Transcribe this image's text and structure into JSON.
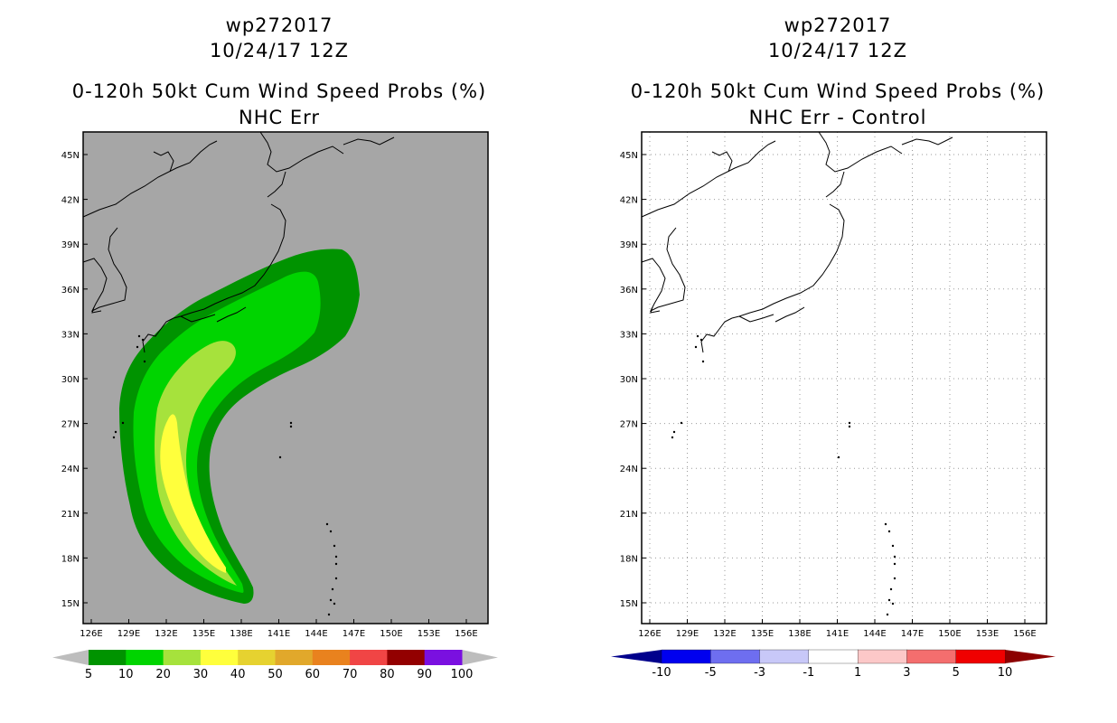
{
  "panels": [
    {
      "title": {
        "storm": "wp272017",
        "date": "10/24/17 12Z",
        "product": "0-120h 50kt Cum Wind Speed Probs (%)",
        "subtitle": "NHC Err"
      },
      "lon_labels": [
        "126E",
        "129E",
        "132E",
        "135E",
        "138E",
        "141E",
        "144E",
        "147E",
        "150E",
        "153E",
        "156E"
      ],
      "lat_labels": [
        "45N",
        "42N",
        "39N",
        "36N",
        "33N",
        "30N",
        "27N",
        "24N",
        "21N",
        "18N",
        "15N"
      ],
      "colorbar": {
        "labels": [
          "5",
          "10",
          "20",
          "30",
          "40",
          "50",
          "60",
          "70",
          "80",
          "90",
          "100"
        ],
        "colors": [
          "#009300",
          "#00d400",
          "#a6e23c",
          "#ffff3c",
          "#e6d230",
          "#e1a82b",
          "#e9821e",
          "#f04545",
          "#930000",
          "#7a10e0"
        ],
        "end_color": "#bdbdbd"
      },
      "background_color": "#a6a6a6"
    },
    {
      "title": {
        "storm": "wp272017",
        "date": "10/24/17 12Z",
        "product": "0-120h 50kt Cum Wind Speed Probs (%)",
        "subtitle": "NHC Err - Control"
      },
      "lon_labels": [
        "126E",
        "129E",
        "132E",
        "135E",
        "138E",
        "141E",
        "144E",
        "147E",
        "150E",
        "153E",
        "156E"
      ],
      "lat_labels": [
        "45N",
        "42N",
        "39N",
        "36N",
        "33N",
        "30N",
        "27N",
        "24N",
        "21N",
        "18N",
        "15N"
      ],
      "colorbar": {
        "labels": [
          "-10",
          "-5",
          "-3",
          "-1",
          "1",
          "3",
          "5",
          "10"
        ],
        "colors": [
          "#0000ef",
          "#6e6ef0",
          "#c8c8f8",
          "#ffffff",
          "#fcc8c8",
          "#f46e6e",
          "#f00000"
        ],
        "low_end_color": "#00008c",
        "high_end_color": "#8c0000"
      },
      "background_color": "#ffffff"
    }
  ]
}
